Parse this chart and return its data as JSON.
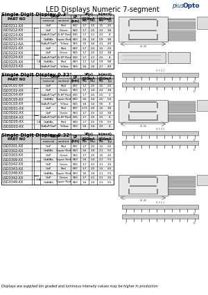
{
  "title": "LED Displays Numeric 7-segment",
  "brand_plain": "pius",
  "brand_bold": "Opto",
  "sections": [
    {
      "heading": "Single Digit Display 0.3\"",
      "rows": [
        [
          "LSD3211-XX",
          "",
          "GaP",
          "Red",
          "697",
          "1.7",
          "2.5",
          "1.5",
          "2.5"
        ],
        [
          "LSD3212-XX",
          "C.C",
          "GaP",
          "Green",
          "565",
          "1.7",
          "2.5",
          "2.2",
          "3.8"
        ],
        [
          "LSD3214-XX",
          "",
          "GaAsP/GaP",
          "Hi-EP Red",
          "635",
          "1.7",
          "2.1",
          "2.5",
          "4"
        ],
        [
          "LSD3215-XX",
          "",
          "GaAlAs",
          "Super Red",
          "660",
          "1.6",
          "2.4",
          "0.9",
          "9.8"
        ],
        [
          "LSD3212-AA",
          "",
          "GaAsP/GaP",
          "Yellow",
          "565",
          "1.6",
          "2.4",
          "3.1",
          "4.9"
        ],
        [
          "LSD3221-XX",
          "",
          "GaP",
          "Red",
          "697",
          "1.7",
          "2.5",
          "1.5",
          "2.5"
        ],
        [
          "LSD3222-XX",
          "",
          "GaP",
          "Green",
          "565",
          "1.7",
          "2.5",
          "2.2",
          "3.8"
        ],
        [
          "LSD3224-XX",
          "C.A",
          "GaAsP/GaP",
          "Hi-EP Red",
          "635",
          "1.7",
          "2.1",
          "2.5",
          "4"
        ],
        [
          "LSD3225-XX",
          "",
          "GaAlAs",
          "Red",
          "660",
          "1.7",
          "2.4",
          "0.9",
          "9.8"
        ],
        [
          "LSD3223-XX",
          "",
          "GaAsP/GaP",
          "Yellow",
          "565",
          "1.6",
          "2.4",
          "2.7",
          "4.9"
        ]
      ]
    },
    {
      "heading": "Single Digit Display 0.32\"",
      "rows": [
        [
          "LSD3C01-XX",
          "",
          "GaP",
          "Red",
          "697",
          "1.7",
          "2.5",
          "1.5",
          "2.5"
        ],
        [
          "LSD3C02-XX",
          "C.C",
          "GaP",
          "Green",
          "565",
          "1.7",
          "2.4",
          "2.2",
          "3.8"
        ],
        [
          "LSD3C04-XX",
          "",
          "GaAsP/GaP",
          "Hi-EP Red",
          "635",
          "1.7",
          "2.5",
          "2.5",
          "4"
        ],
        [
          "LSD3C05-XX",
          "",
          "GaAlAs",
          "Super Red",
          "660",
          "1.6",
          "2.4",
          "2.5",
          "5.6"
        ],
        [
          "LSD3C03-XX",
          "",
          "GaAsP/GaP",
          "Yellow",
          "565",
          "1.6",
          "2.4",
          "0.6",
          "4"
        ],
        [
          "LSD3D01-XX",
          "",
          "GaP",
          "Red",
          "697",
          "1.71",
          "2.5",
          "1.5",
          "3.6"
        ],
        [
          "LSD3D02-XX",
          "",
          "GaP",
          "Green",
          "565",
          "1.7",
          "2.5",
          "2.2",
          "3.8"
        ],
        [
          "LSD3D04-XX",
          "C.A",
          "GaAsP/GaP",
          "Hi-EP Red",
          "635",
          "1.7",
          "2.5",
          "2.5",
          "4"
        ],
        [
          "LSD3D05-XX",
          "",
          "GaAlAs",
          "Red",
          "660",
          "1.7",
          "2.5",
          "0.5",
          "5.5"
        ],
        [
          "LSD3D03-XX",
          "",
          "GaAsP/GaP",
          "Yellow",
          "565",
          "1.6",
          "2.4",
          "2.5",
          "4"
        ]
      ]
    },
    {
      "heading": "Single Digit Display 0.32\"",
      "rows": [
        [
          "LSD3301-XX",
          "",
          "GaP",
          "Red",
          "697",
          "1.7",
          "2.5",
          "1.5",
          "2.5"
        ],
        [
          "LSD3302-XX",
          "C.C",
          "GaAlAs",
          "Super Red",
          "660",
          "1.6",
          "2.4",
          "2.1",
          "5.5"
        ],
        [
          "LSD3303-XX",
          "",
          "GaP",
          "Green",
          "565",
          "1.7",
          "2.5",
          "1.5",
          "2.5"
        ],
        [
          "LSD3309-XX",
          "",
          "GaAlAs",
          "Super Red",
          "660",
          "1.6",
          "2.4",
          "2.1",
          "5.5"
        ],
        [
          "LSD3342-XX",
          "",
          "GaP",
          "Green",
          "565",
          "1.7",
          "2.1",
          "2.1",
          "3.5"
        ],
        [
          "LSD3343-XX",
          "",
          "GaP",
          "Red",
          "697",
          "1.7",
          "2.5",
          "1.5",
          "2.5"
        ],
        [
          "LSD3349-XX",
          "",
          "GaAlAs",
          "Super Red",
          "660",
          "1.6",
          "2.4",
          "2.1",
          "5.5"
        ],
        [
          "LSD3342-XX",
          "C.A",
          "GaP",
          "Green",
          "565",
          "1.7",
          "2.1",
          "2.1",
          "3.5"
        ],
        [
          "LSD3349-XX",
          "",
          "GaAlAs",
          "Super Red",
          "660",
          "1.6",
          "2.4",
          "2.1",
          "5.5"
        ]
      ]
    }
  ],
  "footer": "Displays are supplied bin graded and luminous intensity values may be higher in production",
  "bg_color": "#ffffff",
  "border_color": "#000000",
  "header_bg": "#cccccc",
  "text_color": "#000000",
  "brand_color": "#003399",
  "fs": 3.8,
  "hs": 5.0,
  "title_fs": 7.0,
  "footer_fs": 3.5
}
